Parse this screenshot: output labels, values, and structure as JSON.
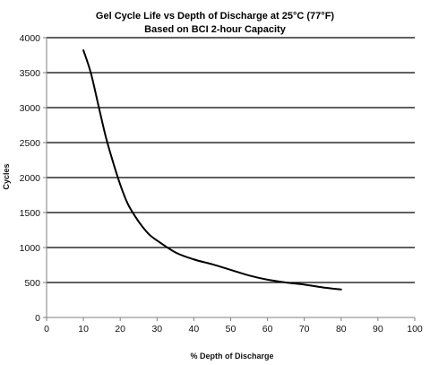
{
  "chart_data": {
    "type": "line",
    "title": "Gel Cycle Life vs Depth of Discharge at 25°C  (77°F)",
    "subtitle": "Based on BCI 2-hour Capacity",
    "xlabel": "% Depth of Discharge",
    "ylabel": "Cycles",
    "xlim": [
      0,
      100
    ],
    "ylim": [
      0,
      4000
    ],
    "x_ticks": [
      0,
      10,
      20,
      30,
      40,
      50,
      60,
      70,
      80,
      90,
      100
    ],
    "y_ticks": [
      0,
      500,
      1000,
      1500,
      2000,
      2500,
      3000,
      3500,
      4000
    ],
    "grid": "horizontal",
    "colors": {
      "line": "#000000",
      "grid": "#000000",
      "axis": "#7f7f7f"
    },
    "series": [
      {
        "x": [
          10,
          12,
          14,
          16,
          18,
          20,
          22,
          24,
          26,
          28,
          30,
          35,
          40,
          45,
          50,
          55,
          60,
          65,
          70,
          75,
          80
        ],
        "values": [
          3820,
          3500,
          3050,
          2600,
          2230,
          1900,
          1630,
          1450,
          1300,
          1180,
          1100,
          930,
          830,
          760,
          680,
          600,
          540,
          500,
          470,
          430,
          400
        ]
      }
    ]
  }
}
